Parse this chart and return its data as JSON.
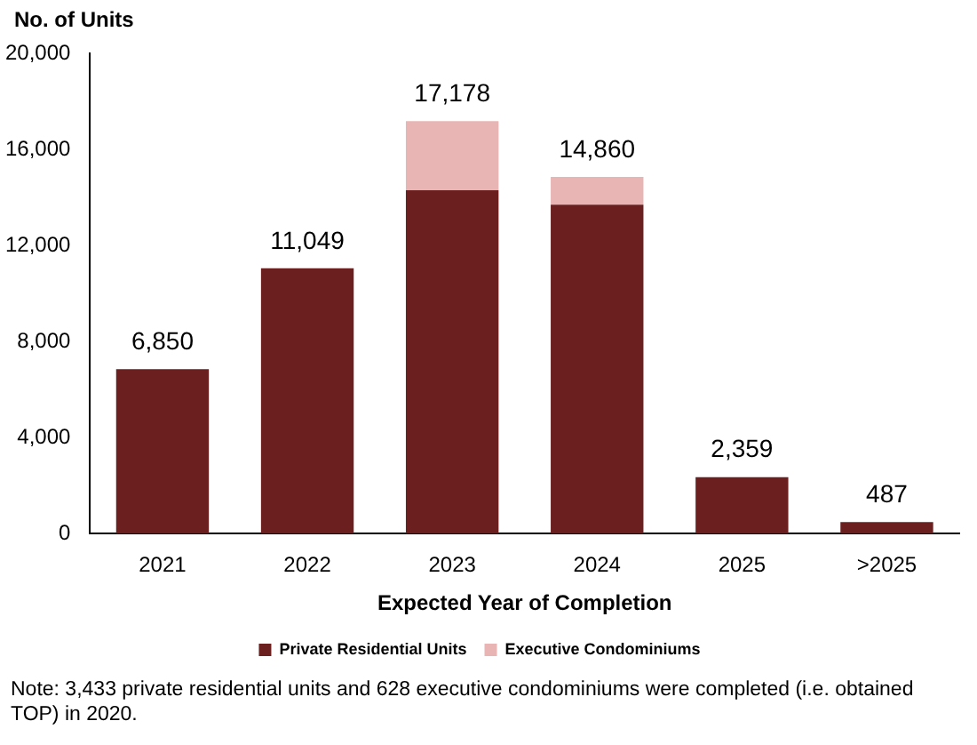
{
  "chart_data": {
    "type": "bar",
    "stacked": true,
    "ylabel": "No. of Units",
    "xlabel": "Expected Year of Completion",
    "categories": [
      "2021",
      "2022",
      "2023",
      "2024",
      "2025",
      ">2025"
    ],
    "series": [
      {
        "name": "Private Residential Units",
        "color": "#6b1f1f",
        "values": [
          6850,
          11049,
          14300,
          13700,
          2359,
          487
        ]
      },
      {
        "name": "Executive Condominiums",
        "color": "#e8b4b4",
        "values": [
          0,
          0,
          2878,
          1160,
          0,
          0
        ]
      }
    ],
    "totals": [
      "6,850",
      "11,049",
      "17,178",
      "14,860",
      "2,359",
      "487"
    ],
    "ylim": [
      0,
      20000
    ],
    "yticks": [
      {
        "value": 0,
        "label": "0"
      },
      {
        "value": 4000,
        "label": "4,000"
      },
      {
        "value": 8000,
        "label": "8,000"
      },
      {
        "value": 12000,
        "label": "12,000"
      },
      {
        "value": 16000,
        "label": "16,000"
      },
      {
        "value": 20000,
        "label": "20,000"
      }
    ],
    "grid": false,
    "legend": "bottom",
    "annotations": [
      "Note: 3,433 private residential units and 628 executive condominiums were completed (i.e. obtained TOP) in 2020."
    ]
  }
}
